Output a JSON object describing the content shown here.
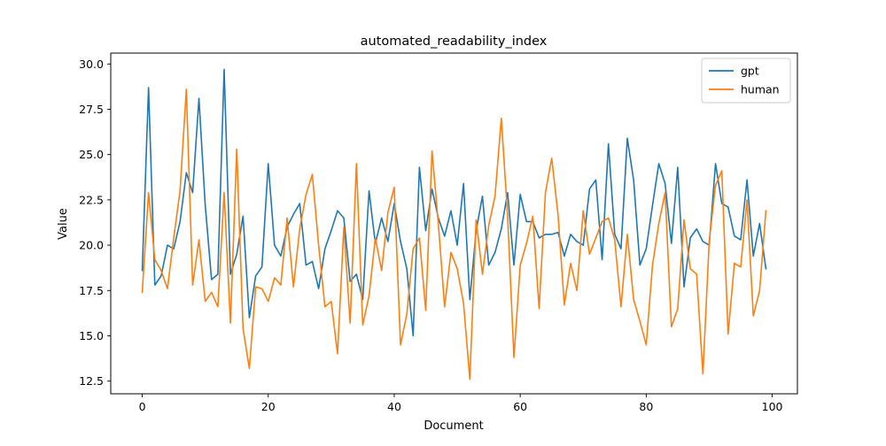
{
  "chart_data": {
    "type": "line",
    "title": "automated_readability_index",
    "xlabel": "Document",
    "ylabel": "Value",
    "xlim": [
      -5,
      104
    ],
    "ylim": [
      11.8,
      30.6
    ],
    "xticks": [
      0,
      20,
      40,
      60,
      80,
      100
    ],
    "yticks": [
      12.5,
      15.0,
      17.5,
      20.0,
      22.5,
      25.0,
      27.5,
      30.0
    ],
    "grid": false,
    "legend_position": "top-right",
    "series": [
      {
        "name": "gpt",
        "color": "#1f77b4",
        "x": [
          0,
          1,
          2,
          3,
          4,
          5,
          6,
          7,
          8,
          9,
          10,
          11,
          12,
          13,
          14,
          15,
          16,
          17,
          18,
          19,
          20,
          21,
          22,
          23,
          24,
          25,
          26,
          27,
          28,
          29,
          30,
          31,
          32,
          33,
          34,
          35,
          36,
          37,
          38,
          39,
          40,
          41,
          42,
          43,
          44,
          45,
          46,
          47,
          48,
          49,
          50,
          51,
          52,
          53,
          54,
          55,
          56,
          57,
          58,
          59,
          60,
          61,
          62,
          63,
          64,
          65,
          66,
          67,
          68,
          69,
          70,
          71,
          72,
          73,
          74,
          75,
          76,
          77,
          78,
          79,
          80,
          81,
          82,
          83,
          84,
          85,
          86,
          87,
          88,
          89,
          90,
          91,
          92,
          93,
          94,
          95,
          96,
          97,
          98,
          99
        ],
        "values": [
          18.6,
          28.7,
          17.8,
          18.3,
          20.0,
          19.8,
          21.3,
          24.0,
          22.9,
          28.1,
          22.2,
          18.1,
          18.4,
          29.7,
          18.4,
          19.5,
          21.6,
          16.0,
          18.3,
          18.8,
          24.5,
          20.0,
          19.4,
          21.0,
          21.7,
          22.3,
          18.9,
          19.1,
          17.6,
          19.8,
          20.8,
          21.9,
          21.5,
          18.0,
          18.4,
          17.0,
          23.0,
          20.1,
          21.5,
          20.2,
          22.3,
          20.2,
          18.7,
          15.0,
          24.3,
          20.8,
          23.1,
          21.5,
          20.5,
          21.9,
          20.0,
          23.4,
          17.0,
          20.8,
          22.7,
          18.9,
          19.6,
          20.9,
          22.9,
          18.9,
          22.8,
          21.3,
          21.3,
          20.4,
          20.6,
          20.6,
          20.7,
          19.4,
          20.6,
          20.2,
          20.0,
          23.1,
          23.6,
          19.2,
          25.6,
          20.6,
          19.8,
          25.9,
          23.6,
          18.9,
          19.8,
          22.2,
          24.5,
          23.4,
          20.1,
          24.3,
          17.7,
          20.4,
          20.9,
          20.2,
          20.0,
          24.5,
          22.3,
          22.1,
          20.5,
          20.3,
          23.6,
          19.4,
          21.2,
          18.7
        ]
      },
      {
        "name": "human",
        "color": "#ff7f0e",
        "x": [
          0,
          1,
          2,
          3,
          4,
          5,
          6,
          7,
          8,
          9,
          10,
          11,
          12,
          13,
          14,
          15,
          16,
          17,
          18,
          19,
          20,
          21,
          22,
          23,
          24,
          25,
          26,
          27,
          28,
          29,
          30,
          31,
          32,
          33,
          34,
          35,
          36,
          37,
          38,
          39,
          40,
          41,
          42,
          43,
          44,
          45,
          46,
          47,
          48,
          49,
          50,
          51,
          52,
          53,
          54,
          55,
          56,
          57,
          58,
          59,
          60,
          61,
          62,
          63,
          64,
          65,
          66,
          67,
          68,
          69,
          70,
          71,
          72,
          73,
          74,
          75,
          76,
          77,
          78,
          79,
          80,
          81,
          82,
          83,
          84,
          85,
          86,
          87,
          88,
          89,
          90,
          91,
          92,
          93,
          94,
          95,
          96,
          97,
          98,
          99
        ],
        "values": [
          17.4,
          22.9,
          19.2,
          18.6,
          17.6,
          20.4,
          23.0,
          28.6,
          17.8,
          20.3,
          16.9,
          17.4,
          16.6,
          22.9,
          15.7,
          25.3,
          15.4,
          13.2,
          17.7,
          17.6,
          16.9,
          18.2,
          17.8,
          21.5,
          17.7,
          20.9,
          22.8,
          23.9,
          20.0,
          16.6,
          16.9,
          14.0,
          21.0,
          15.7,
          24.5,
          15.6,
          17.2,
          20.4,
          18.6,
          21.8,
          23.2,
          14.5,
          16.2,
          19.8,
          20.4,
          16.4,
          25.2,
          21.2,
          16.6,
          19.6,
          18.7,
          16.8,
          12.6,
          21.4,
          18.4,
          21.1,
          22.7,
          27.0,
          21.6,
          13.8,
          18.9,
          20.1,
          21.6,
          16.5,
          22.9,
          24.8,
          21.7,
          16.7,
          19.0,
          17.5,
          21.9,
          19.5,
          20.4,
          21.3,
          21.5,
          20.3,
          16.6,
          20.6,
          17.0,
          15.8,
          14.5,
          18.9,
          21.2,
          22.9,
          15.5,
          16.5,
          21.4,
          18.7,
          18.4,
          12.9,
          20.2,
          23.3,
          24.1,
          15.1,
          19.0,
          18.8,
          22.5,
          16.1,
          17.5,
          21.9
        ]
      }
    ]
  }
}
